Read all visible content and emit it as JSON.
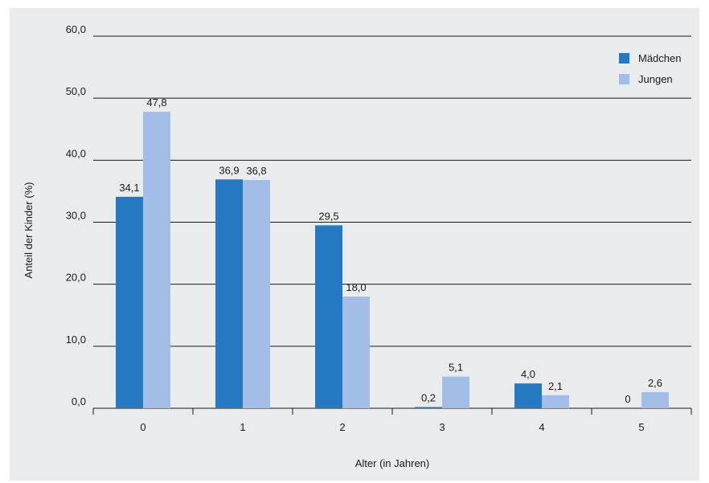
{
  "chart_data": {
    "type": "bar",
    "categories": [
      "0",
      "1",
      "2",
      "3",
      "4",
      "5"
    ],
    "series": [
      {
        "name": "Mädchen",
        "color": "#2479c2",
        "values": [
          34.1,
          36.9,
          29.5,
          0.2,
          4.0,
          0
        ],
        "labels": [
          "34,1",
          "36,9",
          "29,5",
          "0,2",
          "4,0",
          "0"
        ]
      },
      {
        "name": "Jungen",
        "color": "#a3bee6",
        "values": [
          47.8,
          36.8,
          18.0,
          5.1,
          2.1,
          2.6
        ],
        "labels": [
          "47,8",
          "36,8",
          "18,0",
          "5,1",
          "2,1",
          "2,6"
        ]
      }
    ],
    "xlabel": "Alter (in Jahren)",
    "ylabel": "Anteil der Kinder (%)",
    "ylim": [
      0,
      60
    ],
    "yticks": [
      0,
      10,
      20,
      30,
      40,
      50,
      60
    ],
    "ytick_labels": [
      "0,0",
      "10,0",
      "20,0",
      "30,0",
      "40,0",
      "50,0",
      "60,0"
    ],
    "grid": true,
    "legend_position": "top-right"
  },
  "colors": {
    "panel_background": "#e9ebec",
    "grid": "#1a1a1a"
  }
}
